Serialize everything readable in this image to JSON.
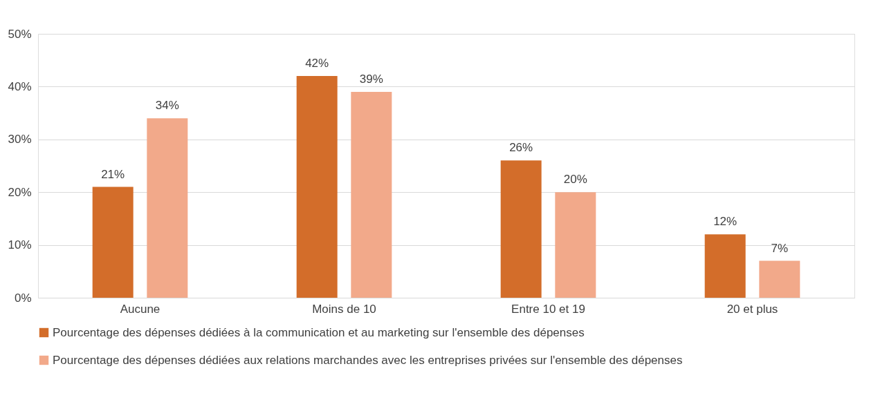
{
  "chart_data": {
    "type": "bar",
    "categories": [
      "Aucune",
      "Moins de 10",
      "Entre 10 et 19",
      "20 et plus"
    ],
    "series": [
      {
        "name": "Pourcentage des dépenses dédiées à la communication et au marketing sur l'ensemble des dépenses",
        "color": "#d36d2a",
        "values": [
          21,
          42,
          26,
          12
        ]
      },
      {
        "name": "Pourcentage des dépenses dédiées aux relations marchandes avec les entreprises privées sur l'ensemble des dépenses",
        "color": "#f2a98a",
        "values": [
          34,
          39,
          20,
          7
        ]
      }
    ],
    "ylim": [
      0,
      50
    ],
    "yticks": [
      {
        "value": 0,
        "label": "0%"
      },
      {
        "value": 10,
        "label": "10%"
      },
      {
        "value": 20,
        "label": "20%"
      },
      {
        "value": 30,
        "label": "30%"
      },
      {
        "value": 40,
        "label": "40%"
      },
      {
        "value": 50,
        "label": "50%"
      }
    ],
    "value_labels": [
      [
        "21%",
        "42%",
        "26%",
        "12%"
      ],
      [
        "34%",
        "39%",
        "20%",
        "7%"
      ]
    ],
    "grid": "y",
    "legend": "bottom"
  }
}
